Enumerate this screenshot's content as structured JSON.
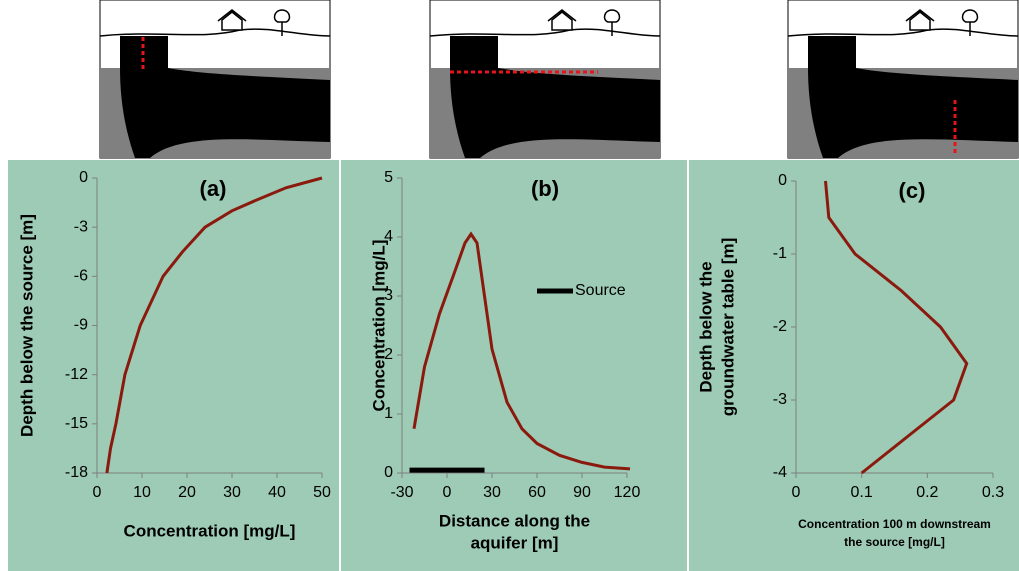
{
  "chart_data": [
    {
      "type": "line",
      "title": "(a)",
      "xlabel": [
        "Concentration [mg/L]"
      ],
      "ylabel": [
        "Depth below the source [m]"
      ],
      "xlim": [
        0,
        50
      ],
      "xticks": [
        0,
        10,
        20,
        30,
        40,
        50
      ],
      "ylim": [
        -18,
        0
      ],
      "yticks": [
        0,
        -3,
        -6,
        -9,
        -12,
        -15,
        -18
      ],
      "series": [
        {
          "color": "#8b1a0e",
          "x": [
            2.2,
            3,
            4.2,
            6.2,
            9.6,
            14.7,
            19,
            24,
            30,
            35,
            42,
            50
          ],
          "values": [
            -18,
            -16.5,
            -15,
            -12,
            -9,
            -6,
            -4.5,
            -3,
            -2,
            -1.4,
            -0.6,
            0
          ]
        }
      ]
    },
    {
      "type": "line",
      "title": "(b)",
      "xlabel": [
        "Distance along the",
        "aquifer [m]"
      ],
      "ylabel": [
        "Concentration [mg/L]"
      ],
      "xlim": [
        -30,
        120
      ],
      "xticks": [
        -30,
        0,
        30,
        60,
        90,
        120
      ],
      "ylim": [
        0,
        5
      ],
      "yticks": [
        0,
        1,
        2,
        3,
        4,
        5
      ],
      "series": [
        {
          "color": "#8b1a0e",
          "x": [
            -22,
            -15,
            -5,
            5,
            12,
            16,
            20,
            25,
            30,
            40,
            50,
            60,
            75,
            90,
            105,
            122
          ],
          "values": [
            0.75,
            1.8,
            2.7,
            3.4,
            3.9,
            4.05,
            3.9,
            3.0,
            2.1,
            1.2,
            0.75,
            0.5,
            0.3,
            0.18,
            0.1,
            0.07
          ]
        },
        {
          "name": "Source",
          "color": "#000000",
          "x": [
            -25,
            25
          ],
          "values": [
            0.05,
            0.05
          ]
        }
      ]
    },
    {
      "type": "line",
      "title": "(c)",
      "xlabel": [
        "Concentration 100 m downstream",
        "the source [mg/L]"
      ],
      "ylabel": [
        "Depth below the",
        "groundwater table [m]"
      ],
      "xlim": [
        0,
        0.3
      ],
      "xticks": [
        0,
        0.1,
        0.2,
        0.3
      ],
      "ylim": [
        -4,
        0
      ],
      "yticks": [
        0,
        -1,
        -2,
        -3,
        -4
      ],
      "series": [
        {
          "color": "#8b1a0e",
          "x": [
            0.045,
            0.05,
            0.09,
            0.16,
            0.22,
            0.26,
            0.24,
            0.17,
            0.1
          ],
          "values": [
            0,
            -0.5,
            -1,
            -1.5,
            -2,
            -2.5,
            -3,
            -3.5,
            -4
          ]
        }
      ]
    }
  ]
}
